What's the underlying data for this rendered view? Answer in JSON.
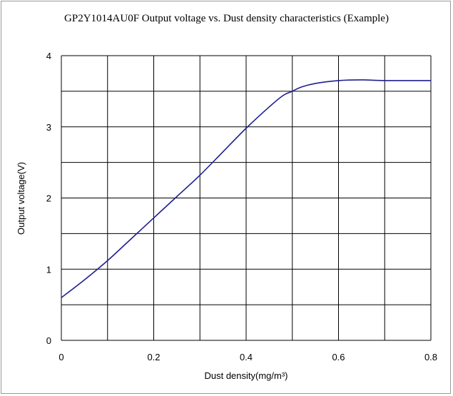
{
  "chart_data": {
    "type": "line",
    "title": "GP2Y1014AU0F Output voltage vs. Dust density characteristics (Example)",
    "xlabel": "Dust density(mg/m³)",
    "ylabel": "Output voltage(V)",
    "xlim": [
      0,
      0.8
    ],
    "ylim": [
      0,
      4
    ],
    "x_ticks": [
      "0",
      "0.2",
      "0.4",
      "0.6",
      "0.8"
    ],
    "y_ticks": [
      "0",
      "1",
      "2",
      "3",
      "4"
    ],
    "x_grid_step": 0.1,
    "y_grid_step": 0.5,
    "grid": true,
    "line_color": "#1f1f8f",
    "series": [
      {
        "x": [
          0,
          0.05,
          0.1,
          0.15,
          0.2,
          0.25,
          0.3,
          0.35,
          0.4,
          0.45,
          0.48,
          0.5,
          0.52,
          0.55,
          0.6,
          0.65,
          0.7,
          0.8
        ],
        "values": [
          0.6,
          0.85,
          1.12,
          1.42,
          1.72,
          2.02,
          2.32,
          2.65,
          2.98,
          3.28,
          3.44,
          3.5,
          3.56,
          3.61,
          3.65,
          3.66,
          3.65,
          3.65
        ]
      }
    ]
  }
}
